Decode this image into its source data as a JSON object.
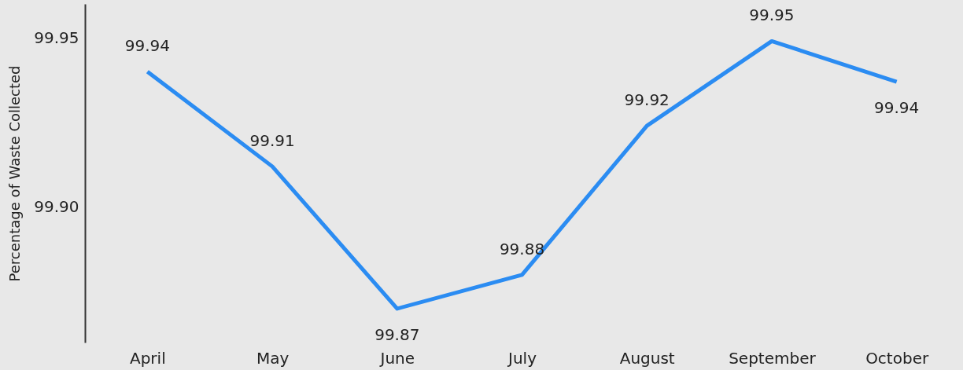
{
  "chart_data": {
    "type": "line",
    "ylabel": "Percentage of Waste Collected",
    "categories": [
      "April",
      "May",
      "June",
      "July",
      "August",
      "September",
      "October"
    ],
    "series": [
      {
        "color": "#2b8cf2",
        "values": [
          99.94,
          99.912,
          99.87,
          99.88,
          99.924,
          99.949,
          99.937
        ],
        "value_labels": [
          "99.94",
          "99.91",
          "99.87",
          "99.88",
          "99.92",
          "99.95",
          "99.94"
        ]
      }
    ],
    "ylim": [
      99.86,
      99.96
    ],
    "yticks": [
      {
        "value": 99.9,
        "label": "99.90"
      },
      {
        "value": 99.95,
        "label": "99.95"
      }
    ],
    "grid": false,
    "marker": "none",
    "line_style": "solid"
  }
}
